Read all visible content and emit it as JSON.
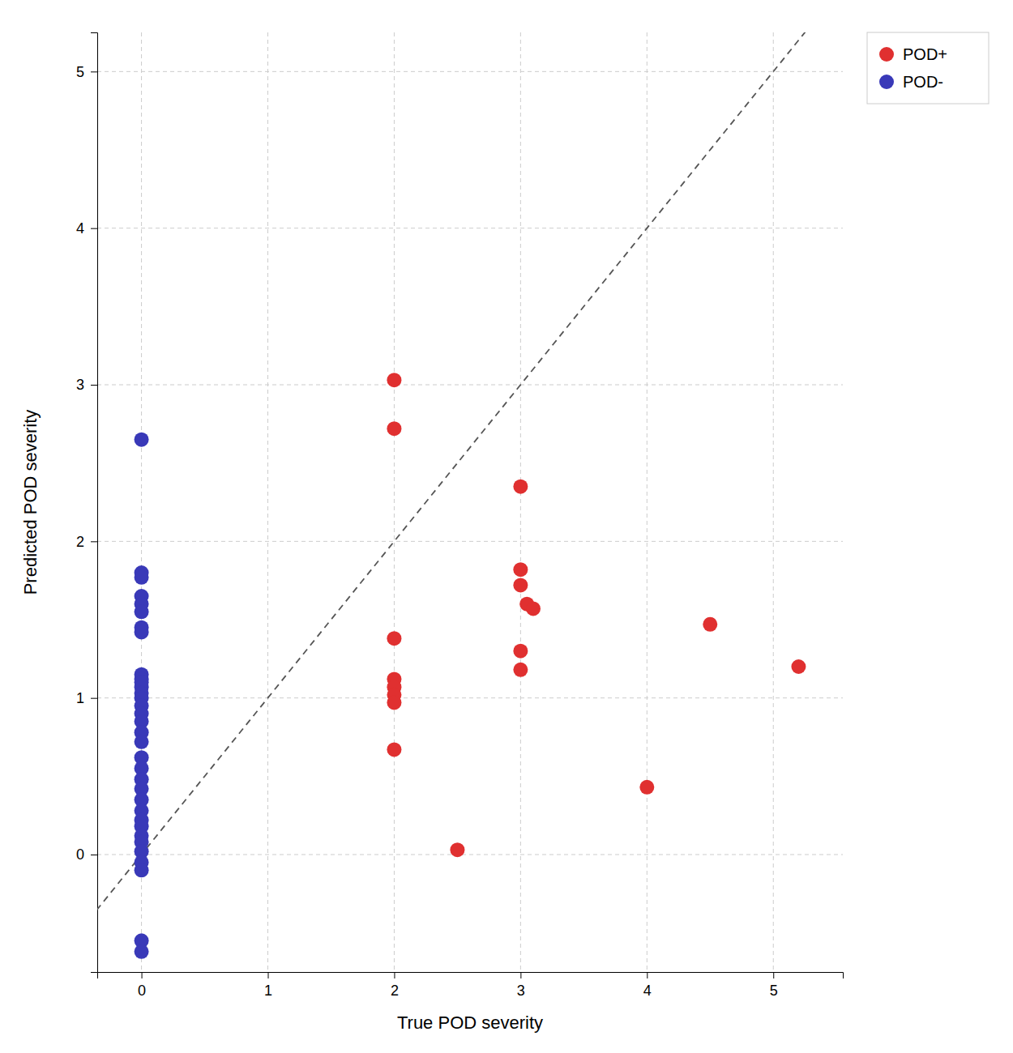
{
  "chart_data": {
    "type": "scatter",
    "xlabel": "True POD severity",
    "ylabel": "Predicted POD severity",
    "xlim": [
      -0.35,
      5.55
    ],
    "ylim": [
      -0.75,
      5.25
    ],
    "xticks": [
      0,
      1,
      2,
      3,
      4,
      5
    ],
    "yticks": [
      0,
      1,
      2,
      3,
      4,
      5
    ],
    "grid": true,
    "legend": "upper right",
    "marker": "circle",
    "series": [
      {
        "name": "POD-",
        "color": "#3939b8",
        "x": [
          0,
          0,
          0,
          0,
          0,
          0,
          0,
          0,
          0,
          0,
          0,
          0,
          0,
          0,
          0,
          0,
          0,
          0,
          0,
          0,
          0,
          0,
          0,
          0,
          0,
          0,
          0,
          0,
          0,
          0,
          0,
          0,
          0,
          0
        ],
        "y": [
          2.65,
          1.8,
          1.77,
          1.65,
          1.6,
          1.55,
          1.45,
          1.42,
          1.15,
          1.12,
          1.1,
          1.07,
          1.03,
          1.0,
          0.95,
          0.9,
          0.85,
          0.78,
          0.72,
          0.62,
          0.55,
          0.48,
          0.42,
          0.35,
          0.28,
          0.22,
          0.18,
          0.12,
          0.08,
          0.02,
          -0.05,
          -0.1,
          -0.55,
          -0.62
        ]
      },
      {
        "name": "POD+",
        "color": "#e03030",
        "x": [
          2.0,
          2.0,
          2.0,
          2.0,
          2.0,
          2.0,
          2.0,
          2.0,
          2.5,
          3.0,
          3.0,
          3.0,
          3.05,
          3.1,
          3.0,
          3.0,
          4.0,
          4.5,
          5.2
        ],
        "y": [
          3.03,
          2.72,
          1.38,
          1.12,
          1.07,
          1.02,
          0.97,
          0.67,
          0.03,
          2.35,
          1.82,
          1.72,
          1.6,
          1.57,
          1.3,
          1.18,
          0.43,
          1.47,
          1.2
        ]
      }
    ]
  }
}
